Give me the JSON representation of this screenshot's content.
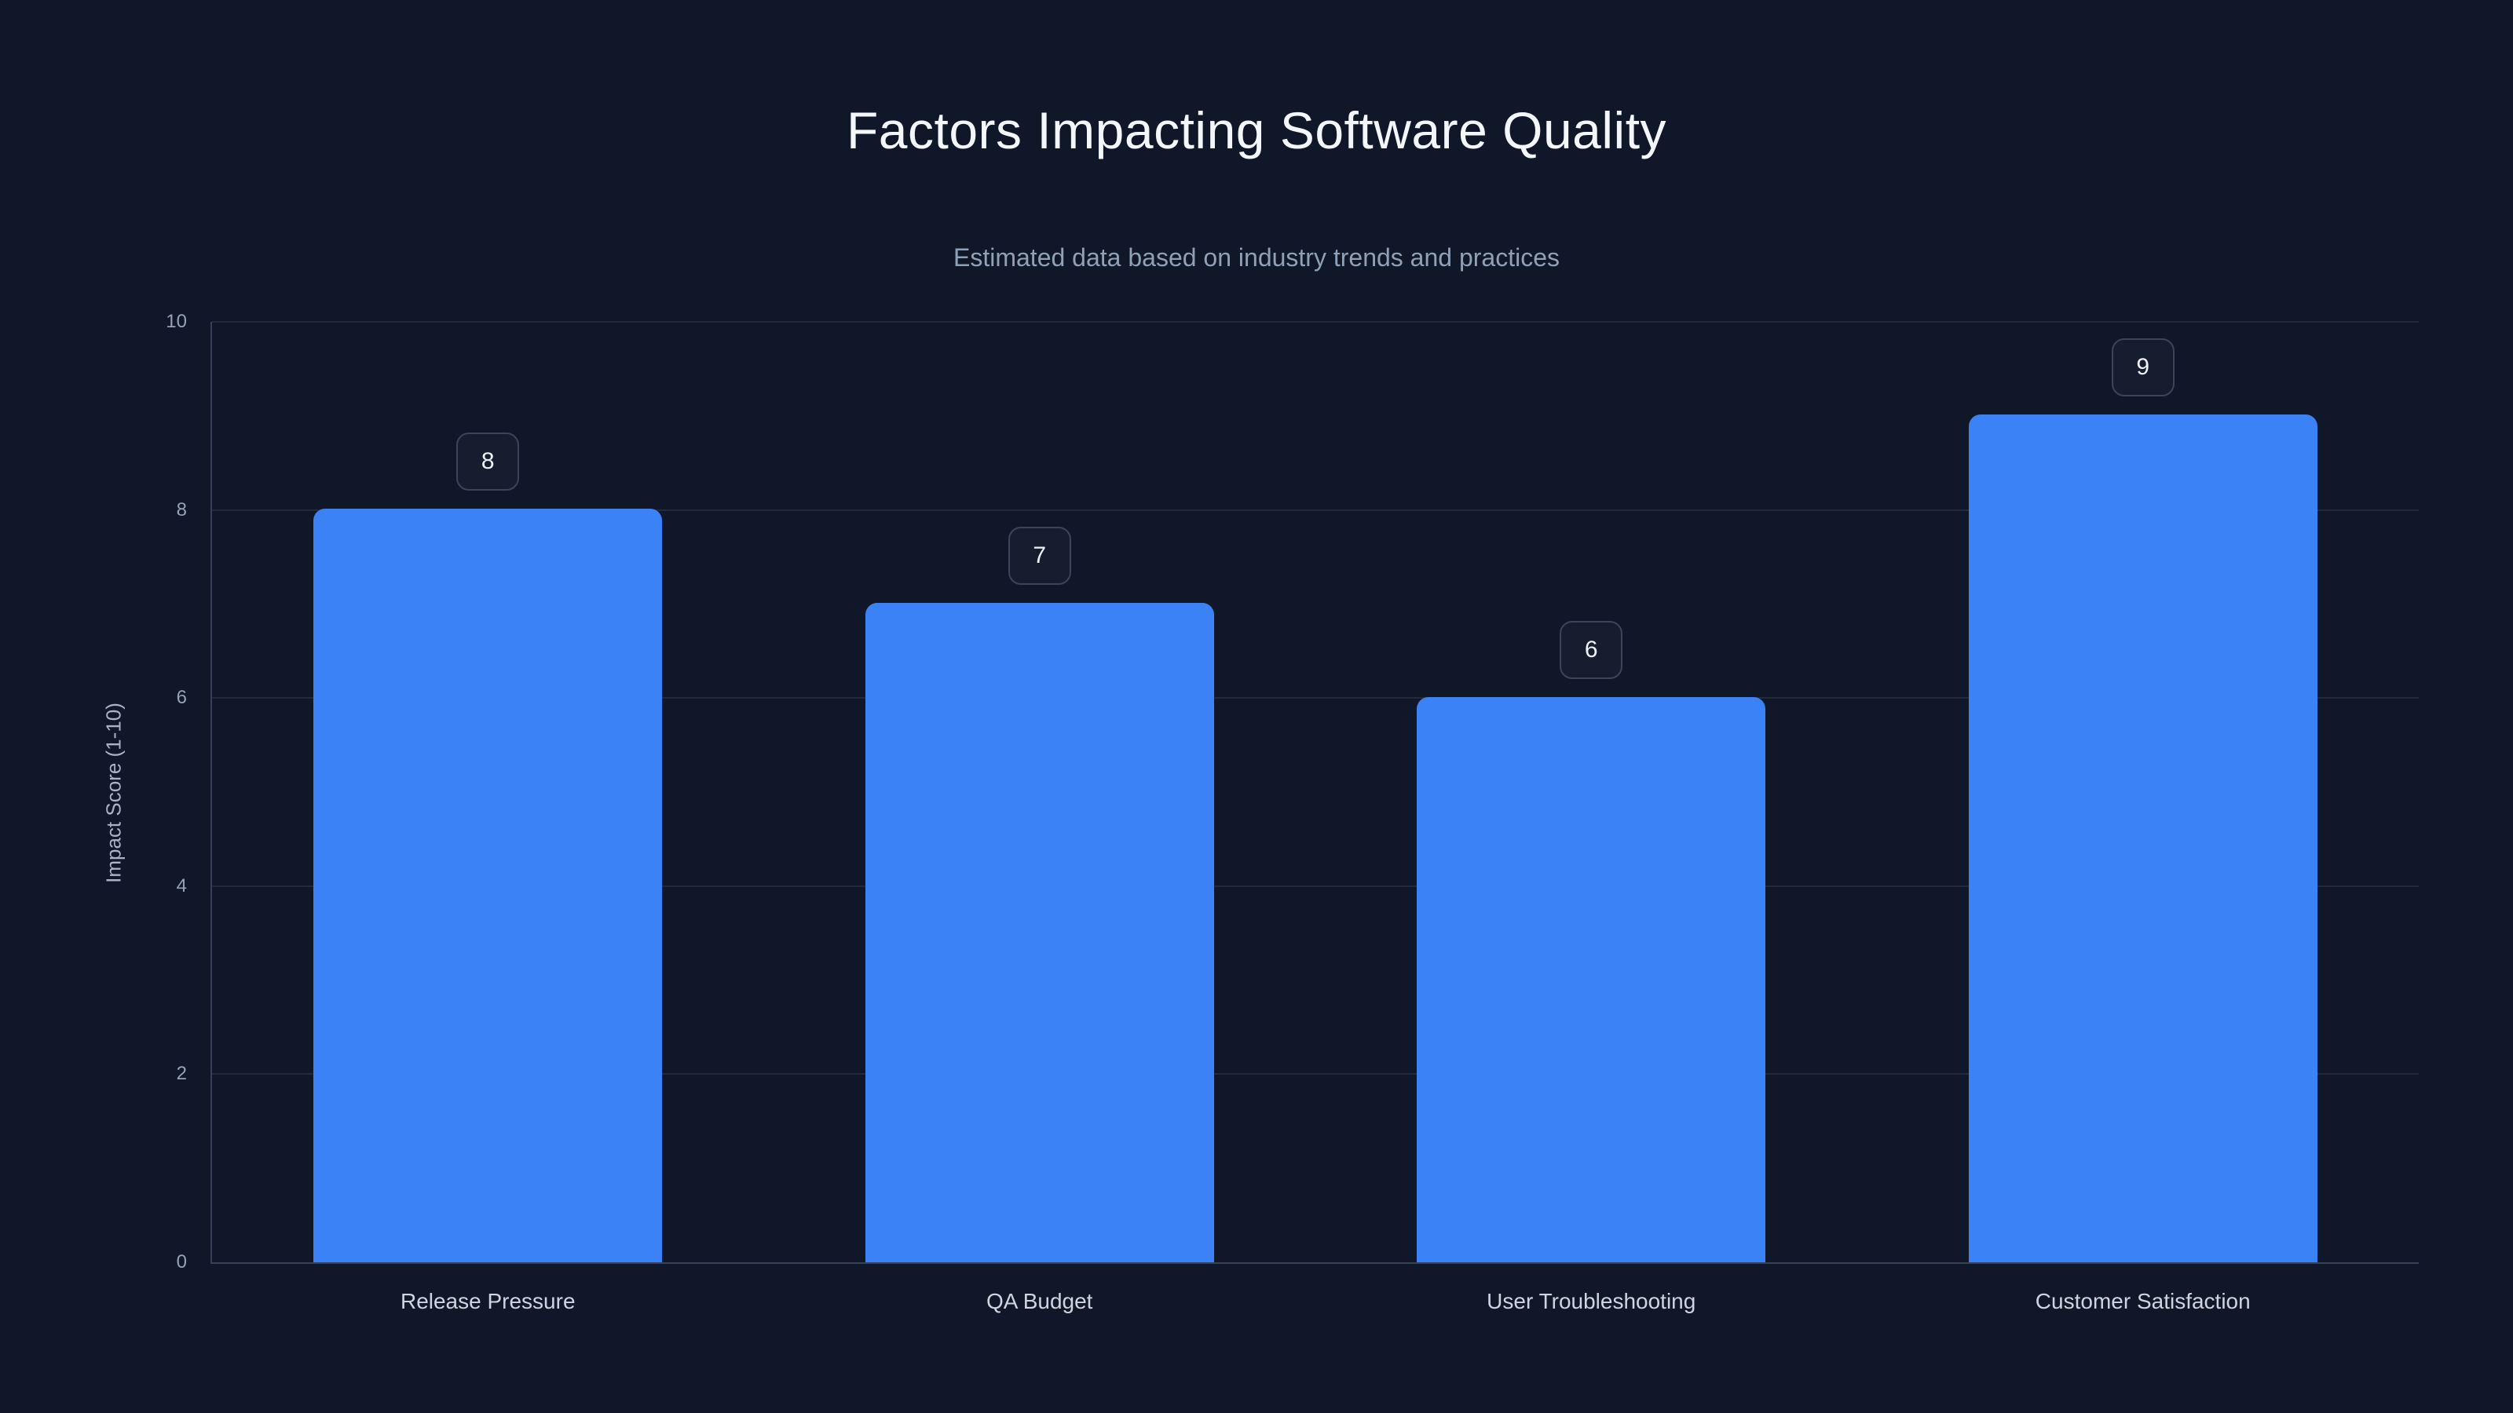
{
  "header": {
    "title": "Factors Impacting Software Quality",
    "subtitle": "Estimated data based on industry trends and practices"
  },
  "chart_data": {
    "type": "bar",
    "title": "Factors Impacting Software Quality",
    "subtitle": "Estimated data based on industry trends and practices",
    "categories": [
      "Release Pressure",
      "QA Budget",
      "User Troubleshooting",
      "Customer Satisfaction"
    ],
    "values": [
      8,
      7,
      6,
      9
    ],
    "data_labels": [
      "8",
      "7",
      "6",
      "9"
    ],
    "xlabel": "",
    "ylabel": "Impact Score (1-10)",
    "ylim": [
      0,
      10
    ],
    "yticks": [
      0,
      2,
      4,
      6,
      8,
      10
    ],
    "grid": true,
    "legend": false
  },
  "colors": {
    "background": "#101728",
    "bar": "#3b82f6",
    "gridline": "rgba(148,163,184,0.14)",
    "axis_line": "#36425a",
    "title_text": "#f3f6fa",
    "subtitle_text": "#90a0b7",
    "tick_text": "#94a3b8",
    "category_text": "#ccd5e0",
    "badge_border": "#3a4658",
    "badge_background": "#151d2f",
    "badge_text": "#eef2f7"
  }
}
